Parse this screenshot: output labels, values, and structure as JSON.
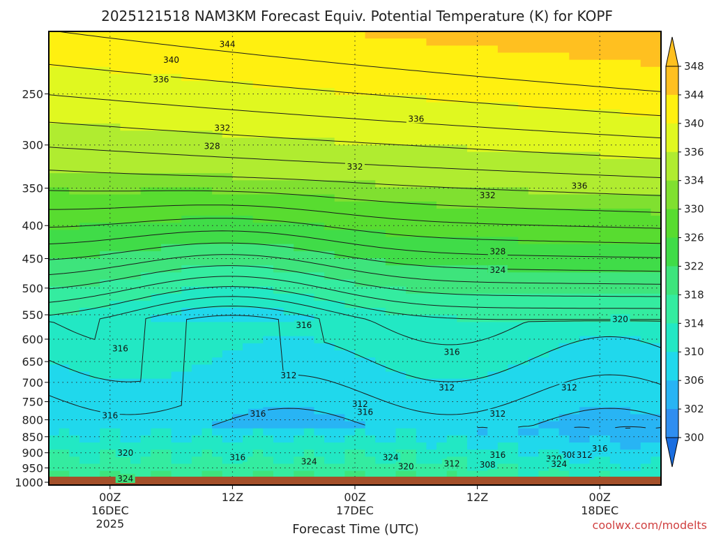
{
  "chart_data": {
    "type": "heatmap",
    "title": "2025121518 NAM3KM Forecast Equiv. Potential Temperature (K) for KOPF",
    "xlabel": "Forecast Time (UTC)",
    "ylabel": "",
    "x_ticks": [
      {
        "label": "00Z",
        "sublabel": "16DEC",
        "year": "2025",
        "hour": 6
      },
      {
        "label": "12Z",
        "sublabel": "",
        "year": "",
        "hour": 18
      },
      {
        "label": "00Z",
        "sublabel": "17DEC",
        "year": "",
        "hour": 30
      },
      {
        "label": "12Z",
        "sublabel": "",
        "year": "",
        "hour": 42
      },
      {
        "label": "00Z",
        "sublabel": "18DEC",
        "year": "",
        "hour": 54
      }
    ],
    "xlim_hours": [
      0,
      60
    ],
    "y_ticks": [
      250,
      300,
      350,
      400,
      450,
      500,
      550,
      600,
      650,
      700,
      750,
      800,
      850,
      900,
      950,
      1000
    ],
    "ylim_hpa": [
      200,
      1010
    ],
    "y_scale": "log-pressure",
    "grid": "dotted",
    "colorbar": {
      "levels": [
        300,
        302,
        306,
        310,
        314,
        318,
        322,
        326,
        330,
        334,
        336,
        340,
        344,
        348
      ],
      "colors": [
        "#1a6ee0",
        "#2f8ef0",
        "#28b4f4",
        "#20d8ec",
        "#22e8c4",
        "#34eca0",
        "#3ee47c",
        "#40dc48",
        "#58dc30",
        "#80e030",
        "#b0ec30",
        "#e0f820",
        "#fff010",
        "#ffc020"
      ],
      "position": "right"
    },
    "contour_labels": [
      {
        "text": "344",
        "hour": 17.5,
        "p": 210
      },
      {
        "text": "340",
        "hour": 12,
        "p": 222
      },
      {
        "text": "336",
        "hour": 11,
        "p": 238
      },
      {
        "text": "336",
        "hour": 36,
        "p": 274
      },
      {
        "text": "332",
        "hour": 17,
        "p": 283
      },
      {
        "text": "328",
        "hour": 16,
        "p": 302
      },
      {
        "text": "332",
        "hour": 30,
        "p": 325
      },
      {
        "text": "336",
        "hour": 52,
        "p": 348
      },
      {
        "text": "332",
        "hour": 43,
        "p": 360
      },
      {
        "text": "328",
        "hour": 44,
        "p": 440
      },
      {
        "text": "324",
        "hour": 44,
        "p": 470
      },
      {
        "text": "320",
        "hour": 56,
        "p": 560
      },
      {
        "text": "316",
        "hour": 25,
        "p": 572
      },
      {
        "text": "316",
        "hour": 7,
        "p": 622
      },
      {
        "text": "316",
        "hour": 39.5,
        "p": 630
      },
      {
        "text": "312",
        "hour": 23.5,
        "p": 685
      },
      {
        "text": "312",
        "hour": 39,
        "p": 715
      },
      {
        "text": "312",
        "hour": 51,
        "p": 715
      },
      {
        "text": "312",
        "hour": 30.5,
        "p": 758
      },
      {
        "text": "316",
        "hour": 31,
        "p": 780
      },
      {
        "text": "312",
        "hour": 44,
        "p": 785
      },
      {
        "text": "316",
        "hour": 20.5,
        "p": 785
      },
      {
        "text": "316",
        "hour": 6,
        "p": 790
      },
      {
        "text": "320",
        "hour": 7.5,
        "p": 903
      },
      {
        "text": "316",
        "hour": 18.5,
        "p": 918
      },
      {
        "text": "324",
        "hour": 25.5,
        "p": 932
      },
      {
        "text": "324",
        "hour": 33.5,
        "p": 918
      },
      {
        "text": "316",
        "hour": 44,
        "p": 910
      },
      {
        "text": "308",
        "hour": 51,
        "p": 910
      },
      {
        "text": "312",
        "hour": 52.5,
        "p": 910
      },
      {
        "text": "316",
        "hour": 54,
        "p": 890
      },
      {
        "text": "320",
        "hour": 49.5,
        "p": 922
      },
      {
        "text": "320",
        "hour": 35,
        "p": 948
      },
      {
        "text": "312",
        "hour": 39.5,
        "p": 938
      },
      {
        "text": "308",
        "hour": 43,
        "p": 942
      },
      {
        "text": "324",
        "hour": 50,
        "p": 940
      },
      {
        "text": "324",
        "hour": 7.5,
        "p": 990
      }
    ]
  },
  "credit": "coolwx.com/modelts"
}
